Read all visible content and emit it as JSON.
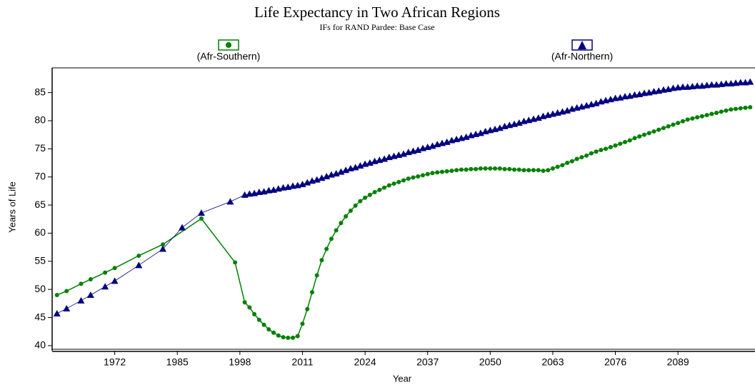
{
  "chart_data": {
    "type": "line",
    "title": "Life Expectancy in Two African Regions",
    "subtitle": "IFs for RAND Pardee: Base Case",
    "xlabel": "Year",
    "ylabel": "Years of Life",
    "xlim": [
      1959,
      2105
    ],
    "ylim": [
      39.1,
      89.4
    ],
    "xticks": [
      1972,
      1985,
      1998,
      2011,
      2024,
      2037,
      2050,
      2063,
      2076,
      2089
    ],
    "yticks": [
      40,
      45,
      50,
      55,
      60,
      65,
      70,
      75,
      80,
      85
    ],
    "series": [
      {
        "name": "(Afr-Southern)",
        "color": "#008000",
        "marker": "circle",
        "x": [
          1960,
          1962,
          1965,
          1967,
          1970,
          1972,
          1977,
          1982,
          1990,
          1997,
          1999,
          2000,
          2001,
          2002,
          2003,
          2004,
          2005,
          2006,
          2007,
          2008,
          2009,
          2010,
          2011,
          2012,
          2013,
          2014,
          2015,
          2016,
          2017,
          2018,
          2019,
          2020,
          2021,
          2022,
          2023,
          2024,
          2025,
          2026,
          2027,
          2028,
          2029,
          2030,
          2031,
          2032,
          2033,
          2034,
          2035,
          2036,
          2037,
          2038,
          2039,
          2040,
          2041,
          2042,
          2043,
          2044,
          2045,
          2046,
          2047,
          2048,
          2049,
          2050,
          2051,
          2052,
          2053,
          2054,
          2055,
          2056,
          2057,
          2058,
          2059,
          2060,
          2061,
          2062,
          2063,
          2064,
          2065,
          2066,
          2067,
          2068,
          2069,
          2070,
          2071,
          2072,
          2073,
          2074,
          2075,
          2076,
          2077,
          2078,
          2079,
          2080,
          2081,
          2082,
          2083,
          2084,
          2085,
          2086,
          2087,
          2088,
          2089,
          2090,
          2091,
          2092,
          2093,
          2094,
          2095,
          2096,
          2097,
          2098,
          2099,
          2100,
          2101,
          2102,
          2103,
          2104
        ],
        "values": [
          49,
          49.7,
          51,
          51.8,
          53,
          53.8,
          56,
          58,
          62.6,
          54.8,
          47.7,
          46.8,
          45.6,
          44.6,
          43.7,
          42.9,
          42.3,
          41.8,
          41.5,
          41.4,
          41.4,
          41.7,
          43.9,
          46.5,
          49.5,
          52.5,
          55.2,
          57.2,
          59,
          60.5,
          61.8,
          63,
          64,
          64.9,
          65.7,
          66.3,
          66.8,
          67.3,
          67.7,
          68.1,
          68.5,
          68.8,
          69.1,
          69.4,
          69.7,
          69.9,
          70.1,
          70.3,
          70.5,
          70.7,
          70.8,
          70.9,
          71.0,
          71.1,
          71.2,
          71.3,
          71.3,
          71.4,
          71.4,
          71.5,
          71.5,
          71.5,
          71.5,
          71.5,
          71.4,
          71.4,
          71.3,
          71.3,
          71.2,
          71.2,
          71.2,
          71.2,
          71.1,
          71.2,
          71.5,
          71.8,
          72.1,
          72.5,
          72.8,
          73.2,
          73.5,
          73.8,
          74.2,
          74.5,
          74.8,
          75.0,
          75.3,
          75.6,
          75.9,
          76.2,
          76.5,
          76.9,
          77.2,
          77.5,
          77.8,
          78.1,
          78.4,
          78.7,
          79.0,
          79.3,
          79.6,
          79.9,
          80.2,
          80.4,
          80.6,
          80.8,
          81.0,
          81.2,
          81.4,
          81.6,
          81.8,
          82.0,
          82.1,
          82.2,
          82.3,
          82.4
        ]
      },
      {
        "name": "(Afr-Northern)",
        "color": "#000080",
        "marker": "triangle",
        "x": [
          1960,
          1962,
          1965,
          1967,
          1970,
          1972,
          1977,
          1982,
          1986,
          1990,
          1996,
          1999,
          2000,
          2001,
          2002,
          2003,
          2004,
          2005,
          2006,
          2007,
          2008,
          2009,
          2010,
          2011,
          2012,
          2013,
          2014,
          2015,
          2016,
          2017,
          2018,
          2019,
          2020,
          2021,
          2022,
          2023,
          2024,
          2025,
          2026,
          2027,
          2028,
          2029,
          2030,
          2031,
          2032,
          2033,
          2034,
          2035,
          2036,
          2037,
          2038,
          2039,
          2040,
          2041,
          2042,
          2043,
          2044,
          2045,
          2046,
          2047,
          2048,
          2049,
          2050,
          2051,
          2052,
          2053,
          2054,
          2055,
          2056,
          2057,
          2058,
          2059,
          2060,
          2061,
          2062,
          2063,
          2064,
          2065,
          2066,
          2067,
          2068,
          2069,
          2070,
          2071,
          2072,
          2073,
          2074,
          2075,
          2076,
          2077,
          2078,
          2079,
          2080,
          2081,
          2082,
          2083,
          2084,
          2085,
          2086,
          2087,
          2088,
          2089,
          2090,
          2091,
          2092,
          2093,
          2094,
          2095,
          2096,
          2097,
          2098,
          2099,
          2100,
          2101,
          2102,
          2103,
          2104
        ],
        "values": [
          45.7,
          46.6,
          48,
          49,
          50.5,
          51.5,
          54.3,
          57.2,
          61,
          63.6,
          65.6,
          66.8,
          67.0,
          67.1,
          67.3,
          67.4,
          67.6,
          67.7,
          67.9,
          68.1,
          68.2,
          68.4,
          68.5,
          68.7,
          69.0,
          69.3,
          69.5,
          69.8,
          70.1,
          70.4,
          70.6,
          70.9,
          71.2,
          71.5,
          71.7,
          72.0,
          72.3,
          72.5,
          72.8,
          73.0,
          73.2,
          73.5,
          73.7,
          73.9,
          74.1,
          74.4,
          74.6,
          74.8,
          75.1,
          75.3,
          75.5,
          75.8,
          76.0,
          76.2,
          76.5,
          76.7,
          76.9,
          77.1,
          77.4,
          77.6,
          77.8,
          78.1,
          78.3,
          78.5,
          78.7,
          79.0,
          79.2,
          79.4,
          79.6,
          79.9,
          80.1,
          80.3,
          80.5,
          80.8,
          81.0,
          81.2,
          81.4,
          81.6,
          81.8,
          82.1,
          82.3,
          82.5,
          82.7,
          82.9,
          83.1,
          83.4,
          83.6,
          83.8,
          84.0,
          84.1,
          84.3,
          84.4,
          84.6,
          84.7,
          84.9,
          85.0,
          85.2,
          85.3,
          85.5,
          85.6,
          85.8,
          85.9,
          86.0,
          86.0,
          86.1,
          86.2,
          86.2,
          86.3,
          86.4,
          86.4,
          86.5,
          86.6,
          86.6,
          86.7,
          86.8,
          86.8,
          86.9
        ]
      }
    ]
  }
}
